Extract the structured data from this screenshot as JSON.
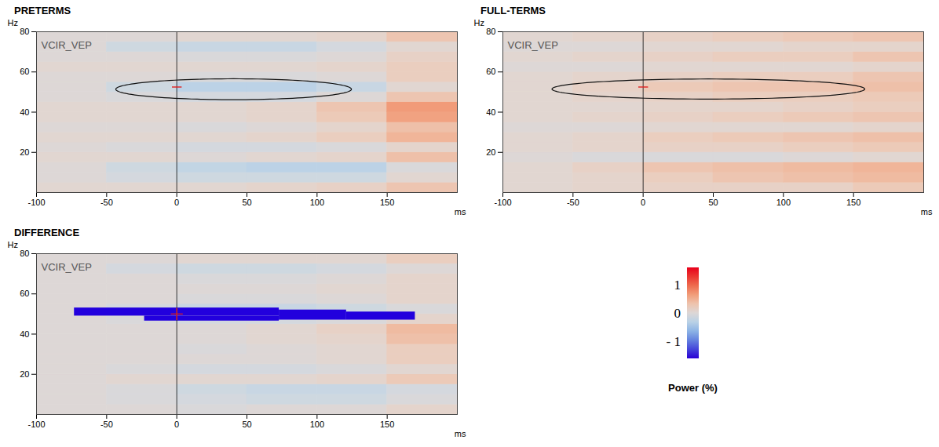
{
  "chart_data": [
    {
      "type": "heatmap",
      "title": "PRETERMS",
      "annotation": "VCIR_VEP",
      "xlabel": "ms",
      "ylabel": "Hz",
      "xlim": [
        -100,
        200
      ],
      "xticks": [
        -100,
        -50,
        0,
        50,
        100,
        150
      ],
      "ylim": [
        0,
        80
      ],
      "yticks": [
        20,
        40,
        60,
        80
      ],
      "x_edges": [
        -100,
        -50,
        0,
        50,
        100,
        150,
        200
      ],
      "y_edges": [
        0,
        5,
        10,
        15,
        20,
        25,
        30,
        35,
        40,
        45,
        50,
        55,
        60,
        65,
        70,
        75,
        80
      ],
      "cells": [
        [
          0.05,
          0.05,
          0.05,
          0.1,
          0.15,
          0.3
        ],
        [
          0,
          -0.1,
          -0.15,
          -0.15,
          -0.15,
          0.05
        ],
        [
          0,
          -0.15,
          -0.25,
          -0.3,
          -0.3,
          -0.05
        ],
        [
          0.05,
          0.05,
          0,
          0.05,
          0.1,
          0.35
        ],
        [
          0,
          -0.05,
          -0.1,
          -0.1,
          -0.05,
          0.1
        ],
        [
          0.05,
          0.05,
          0.05,
          0.1,
          0.2,
          0.45
        ],
        [
          0,
          0,
          -0.05,
          0,
          0.1,
          0.35
        ],
        [
          0.05,
          0.05,
          0.05,
          0.1,
          0.25,
          0.6
        ],
        [
          0.05,
          0.05,
          0.05,
          0.1,
          0.3,
          0.65
        ],
        [
          0,
          -0.05,
          -0.1,
          -0.1,
          0,
          0.3
        ],
        [
          0,
          -0.15,
          -0.3,
          -0.3,
          -0.2,
          0.05
        ],
        [
          0,
          0,
          -0.05,
          -0.05,
          0,
          0.2
        ],
        [
          0.05,
          0.05,
          0.05,
          0.05,
          0.1,
          0.2
        ],
        [
          0,
          0,
          -0.05,
          -0.05,
          0,
          0.15
        ],
        [
          0,
          -0.15,
          -0.2,
          -0.2,
          -0.1,
          0.05
        ],
        [
          0,
          0,
          0.05,
          0.05,
          0.1,
          0.3
        ]
      ],
      "onset": 0,
      "reference_point": {
        "x": 0,
        "y": 52.5
      },
      "marker": "dash",
      "ellipse": {
        "cx": 40.5,
        "cy": 51.4,
        "rx": 84,
        "ry": 5.2
      }
    },
    {
      "type": "heatmap",
      "title": "FULL-TERMS",
      "annotation": "VCIR_VEP",
      "xlabel": "ms",
      "ylabel": "Hz",
      "xlim": [
        -100,
        200
      ],
      "xticks": [
        -100,
        -50,
        0,
        50,
        100,
        150
      ],
      "ylim": [
        0,
        80
      ],
      "yticks": [
        20,
        40,
        60,
        80
      ],
      "x_edges": [
        -100,
        -50,
        0,
        50,
        100,
        150,
        200
      ],
      "y_edges": [
        0,
        5,
        10,
        15,
        20,
        25,
        30,
        35,
        40,
        45,
        50,
        55,
        60,
        65,
        70,
        75,
        80
      ],
      "cells": [
        [
          0.05,
          0.1,
          0.15,
          0.15,
          0.15,
          0.25
        ],
        [
          0.05,
          0.1,
          0.2,
          0.3,
          0.35,
          0.4
        ],
        [
          0.05,
          0.15,
          0.3,
          0.35,
          0.4,
          0.45
        ],
        [
          0,
          -0.05,
          -0.05,
          -0.05,
          0,
          0.05
        ],
        [
          0.05,
          0.1,
          0.15,
          0.15,
          0.2,
          0.25
        ],
        [
          0.05,
          0.1,
          0.2,
          0.25,
          0.3,
          0.35
        ],
        [
          0,
          0,
          0.05,
          0.05,
          0.05,
          0.1
        ],
        [
          0.05,
          0.1,
          0.15,
          0.2,
          0.25,
          0.3
        ],
        [
          0.05,
          0.05,
          0.1,
          0.1,
          0.15,
          0.2
        ],
        [
          0.05,
          0.1,
          0.15,
          0.2,
          0.2,
          0.25
        ],
        [
          0.05,
          0.15,
          0.25,
          0.3,
          0.3,
          0.35
        ],
        [
          0.05,
          0.1,
          0.15,
          0.2,
          0.2,
          0.3
        ],
        [
          0,
          0,
          0.05,
          0.05,
          0.05,
          0.1
        ],
        [
          0.05,
          0.1,
          0.15,
          0.2,
          0.2,
          0.3
        ],
        [
          0,
          0,
          0.05,
          0.05,
          0.1,
          0.1
        ],
        [
          0.05,
          0.1,
          0.15,
          0.2,
          0.25,
          0.3
        ]
      ],
      "onset": 0,
      "reference_point": {
        "x": 0,
        "y": 52.5
      },
      "marker": "dash",
      "ellipse": {
        "cx": 46.5,
        "cy": 51.5,
        "rx": 111.5,
        "ry": 5
      }
    },
    {
      "type": "heatmap",
      "title": "DIFFERENCE",
      "annotation": "VCIR_VEP",
      "xlabel": "ms",
      "ylabel": "Hz",
      "xlim": [
        -100,
        200
      ],
      "xticks": [
        -100,
        -50,
        0,
        50,
        100,
        150
      ],
      "ylim": [
        0,
        80
      ],
      "yticks": [
        20,
        40,
        60,
        80
      ],
      "x_edges": [
        -100,
        -50,
        0,
        50,
        100,
        150,
        200
      ],
      "y_edges": [
        0,
        5,
        10,
        15,
        20,
        25,
        30,
        35,
        40,
        45,
        50,
        55,
        60,
        65,
        70,
        75,
        80
      ],
      "cells": [
        [
          0,
          0,
          -0.05,
          0,
          0,
          0.1
        ],
        [
          0,
          -0.05,
          -0.1,
          -0.15,
          -0.15,
          -0.05
        ],
        [
          0,
          -0.05,
          -0.15,
          -0.2,
          -0.2,
          -0.1
        ],
        [
          0,
          0.05,
          0.05,
          0.05,
          0.1,
          0.25
        ],
        [
          0,
          -0.05,
          -0.1,
          -0.1,
          -0.05,
          0.05
        ],
        [
          0,
          0,
          0,
          0,
          0.05,
          0.2
        ],
        [
          0,
          0,
          -0.05,
          0,
          0.05,
          0.2
        ],
        [
          0,
          0,
          0,
          0.05,
          0.1,
          0.35
        ],
        [
          0,
          0,
          0,
          0.05,
          0.15,
          0.4
        ],
        [
          0,
          -0.05,
          -0.1,
          -0.1,
          -0.05,
          0.1
        ],
        [
          0,
          -0.1,
          -0.2,
          -0.2,
          -0.15,
          -0.05
        ],
        [
          0,
          0,
          -0.05,
          -0.05,
          0,
          0.1
        ],
        [
          0,
          0,
          0,
          0,
          0.05,
          0.1
        ],
        [
          0,
          0,
          -0.05,
          -0.05,
          0,
          0.1
        ],
        [
          0,
          -0.1,
          -0.15,
          -0.15,
          -0.1,
          0
        ],
        [
          0,
          0,
          0.05,
          0.05,
          0.05,
          0.2
        ]
      ],
      "onset": 0,
      "reference_point": {
        "x": 0,
        "y": 50
      },
      "marker": "plus",
      "color": "#2200dd",
      "significant_regions": [
        {
          "x1": -73,
          "x2": 73,
          "y1": 49,
          "y2": 53
        },
        {
          "x1": -23,
          "x2": 73,
          "y1": 46.5,
          "y2": 49
        },
        {
          "x1": 73,
          "x2": 121,
          "y1": 47,
          "y2": 52
        },
        {
          "x1": 121,
          "x2": 170,
          "y1": 47,
          "y2": 51
        }
      ]
    }
  ],
  "colorbar": {
    "label": "Power (%)",
    "range": [
      -1.6,
      1.6
    ],
    "ticks": [
      1,
      0,
      {
        "value": -1,
        "label": "- 1"
      }
    ]
  }
}
